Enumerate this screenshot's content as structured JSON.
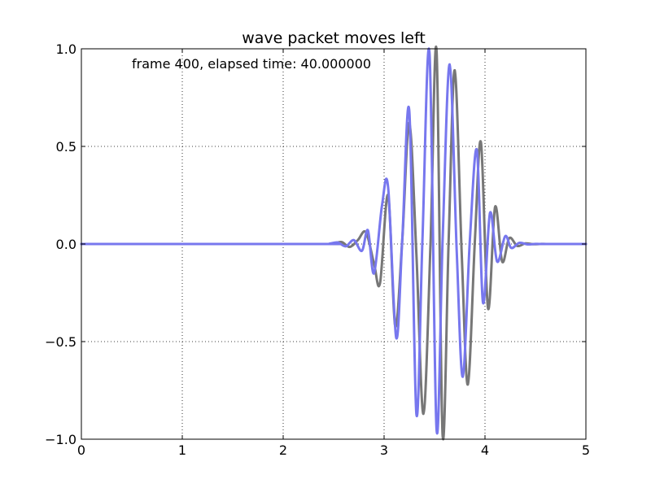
{
  "chart_data": {
    "type": "line",
    "title": "wave packet moves left",
    "annotation": "frame 400, elapsed time: 40.000000",
    "xlabel": "",
    "ylabel": "",
    "xlim": [
      0,
      5
    ],
    "ylim": [
      -1.0,
      1.0
    ],
    "x_ticks": [
      0,
      1,
      2,
      3,
      4,
      5
    ],
    "x_tick_labels": [
      "0",
      "1",
      "2",
      "3",
      "4",
      "5"
    ],
    "y_ticks": [
      -1.0,
      -0.5,
      0.0,
      0.5,
      1.0
    ],
    "y_tick_labels": [
      "−1.0",
      "−0.5",
      "0.0",
      "0.5",
      "1.0"
    ],
    "grid": true,
    "grid_style": "dotted",
    "series": [
      {
        "color": "#777777",
        "x": [
          0,
          2.4,
          2.5,
          2.58,
          2.66,
          2.74,
          2.82,
          2.9,
          2.96,
          3.04,
          3.11,
          3.18,
          3.25,
          3.32,
          3.39,
          3.46,
          3.52,
          3.58,
          3.64,
          3.7,
          3.77,
          3.83,
          3.9,
          3.96,
          4.03,
          4.1,
          4.17,
          4.24,
          4.32,
          4.4,
          4.48,
          4.56,
          4.64,
          5
        ],
        "y": [
          0,
          0,
          0.003,
          0.01,
          -0.015,
          0.02,
          0.06,
          -0.1,
          -0.2,
          0.25,
          -0.42,
          0.02,
          0.62,
          -0.05,
          -0.87,
          0.0,
          0.99,
          -0.98,
          0.02,
          0.89,
          -0.06,
          -0.72,
          0.02,
          0.52,
          -0.33,
          0.19,
          -0.09,
          0.03,
          -0.01,
          0.003,
          -0.001,
          0.0005,
          0,
          0
        ]
      },
      {
        "color": "#7777ee",
        "x": [
          0,
          2.36,
          2.46,
          2.54,
          2.62,
          2.7,
          2.78,
          2.84,
          2.9,
          2.98,
          3.04,
          3.12,
          3.18,
          3.25,
          3.32,
          3.38,
          3.45,
          3.52,
          3.58,
          3.65,
          3.72,
          3.78,
          3.85,
          3.92,
          3.98,
          4.05,
          4.12,
          4.2,
          4.26,
          4.34,
          4.42,
          4.5,
          4.58,
          5
        ],
        "y": [
          0,
          0,
          0.002,
          0.008,
          -0.012,
          0.02,
          -0.035,
          0.07,
          -0.15,
          0.2,
          0.29,
          -0.48,
          0.02,
          0.68,
          -0.87,
          0.02,
          0.98,
          -0.95,
          0.02,
          0.92,
          -0.04,
          -0.68,
          0.02,
          0.48,
          -0.3,
          0.16,
          -0.09,
          0.04,
          -0.02,
          0.006,
          -0.002,
          0.0005,
          0,
          0
        ]
      }
    ]
  }
}
